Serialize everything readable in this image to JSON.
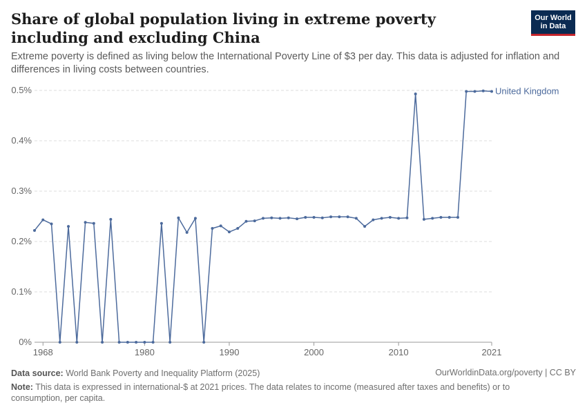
{
  "header": {
    "title": "Share of global population living in extreme poverty including and excluding China",
    "subtitle": "Extreme poverty is defined as living below the International Poverty Line of $3 per day. This data is adjusted for inflation and differences in living costs between countries.",
    "logo_line1": "Our World",
    "logo_line2": "in Data"
  },
  "footer": {
    "source_label": "Data source:",
    "source_text": "World Bank Poverty and Inequality Platform (2025)",
    "license": "OurWorldinData.org/poverty | CC BY",
    "note_label": "Note:",
    "note_text": "This data is expressed in international-$ at 2021 prices. The data relates to income (measured after taxes and benefits) or to consumption, per capita."
  },
  "colors": {
    "series": "#4c6a9c",
    "grid": "#dddddd"
  },
  "chart_data": {
    "type": "line",
    "xlim": [
      1967,
      2021
    ],
    "ylim": [
      0,
      0.5
    ],
    "y_ticks": [
      0,
      0.1,
      0.2,
      0.3,
      0.4,
      0.5
    ],
    "y_tick_labels": [
      "0%",
      "0.1%",
      "0.2%",
      "0.3%",
      "0.4%",
      "0.5%"
    ],
    "x_ticks": [
      1968,
      1980,
      1990,
      2000,
      2010,
      2021
    ],
    "x_tick_labels": [
      "1968",
      "1980",
      "1990",
      "2000",
      "2010",
      "2021"
    ],
    "grid": true,
    "series": [
      {
        "name": "United Kingdom",
        "x": [
          1967,
          1968,
          1969,
          1970,
          1971,
          1972,
          1973,
          1974,
          1975,
          1976,
          1977,
          1978,
          1979,
          1980,
          1981,
          1982,
          1983,
          1984,
          1985,
          1986,
          1987,
          1988,
          1989,
          1990,
          1991,
          1992,
          1993,
          1994,
          1995,
          1996,
          1997,
          1998,
          1999,
          2000,
          2001,
          2002,
          2003,
          2004,
          2005,
          2006,
          2007,
          2008,
          2009,
          2010,
          2011,
          2012,
          2013,
          2014,
          2015,
          2016,
          2017,
          2018,
          2019,
          2020,
          2021
        ],
        "values": [
          0.222,
          0.243,
          0.235,
          0,
          0.23,
          0,
          0.238,
          0.236,
          0,
          0.244,
          0,
          0,
          0,
          0,
          0,
          0.236,
          0,
          0.247,
          0.218,
          0.246,
          0,
          0.226,
          0.231,
          0.219,
          0.226,
          0.24,
          0.241,
          0.246,
          0.247,
          0.246,
          0.247,
          0.245,
          0.248,
          0.248,
          0.247,
          0.249,
          0.249,
          0.249,
          0.246,
          0.23,
          0.243,
          0.246,
          0.248,
          0.246,
          0.247,
          0.493,
          0.244,
          0.246,
          0.248,
          0.248,
          0.248,
          0.498,
          0.498,
          0.499,
          0.498
        ]
      }
    ]
  }
}
